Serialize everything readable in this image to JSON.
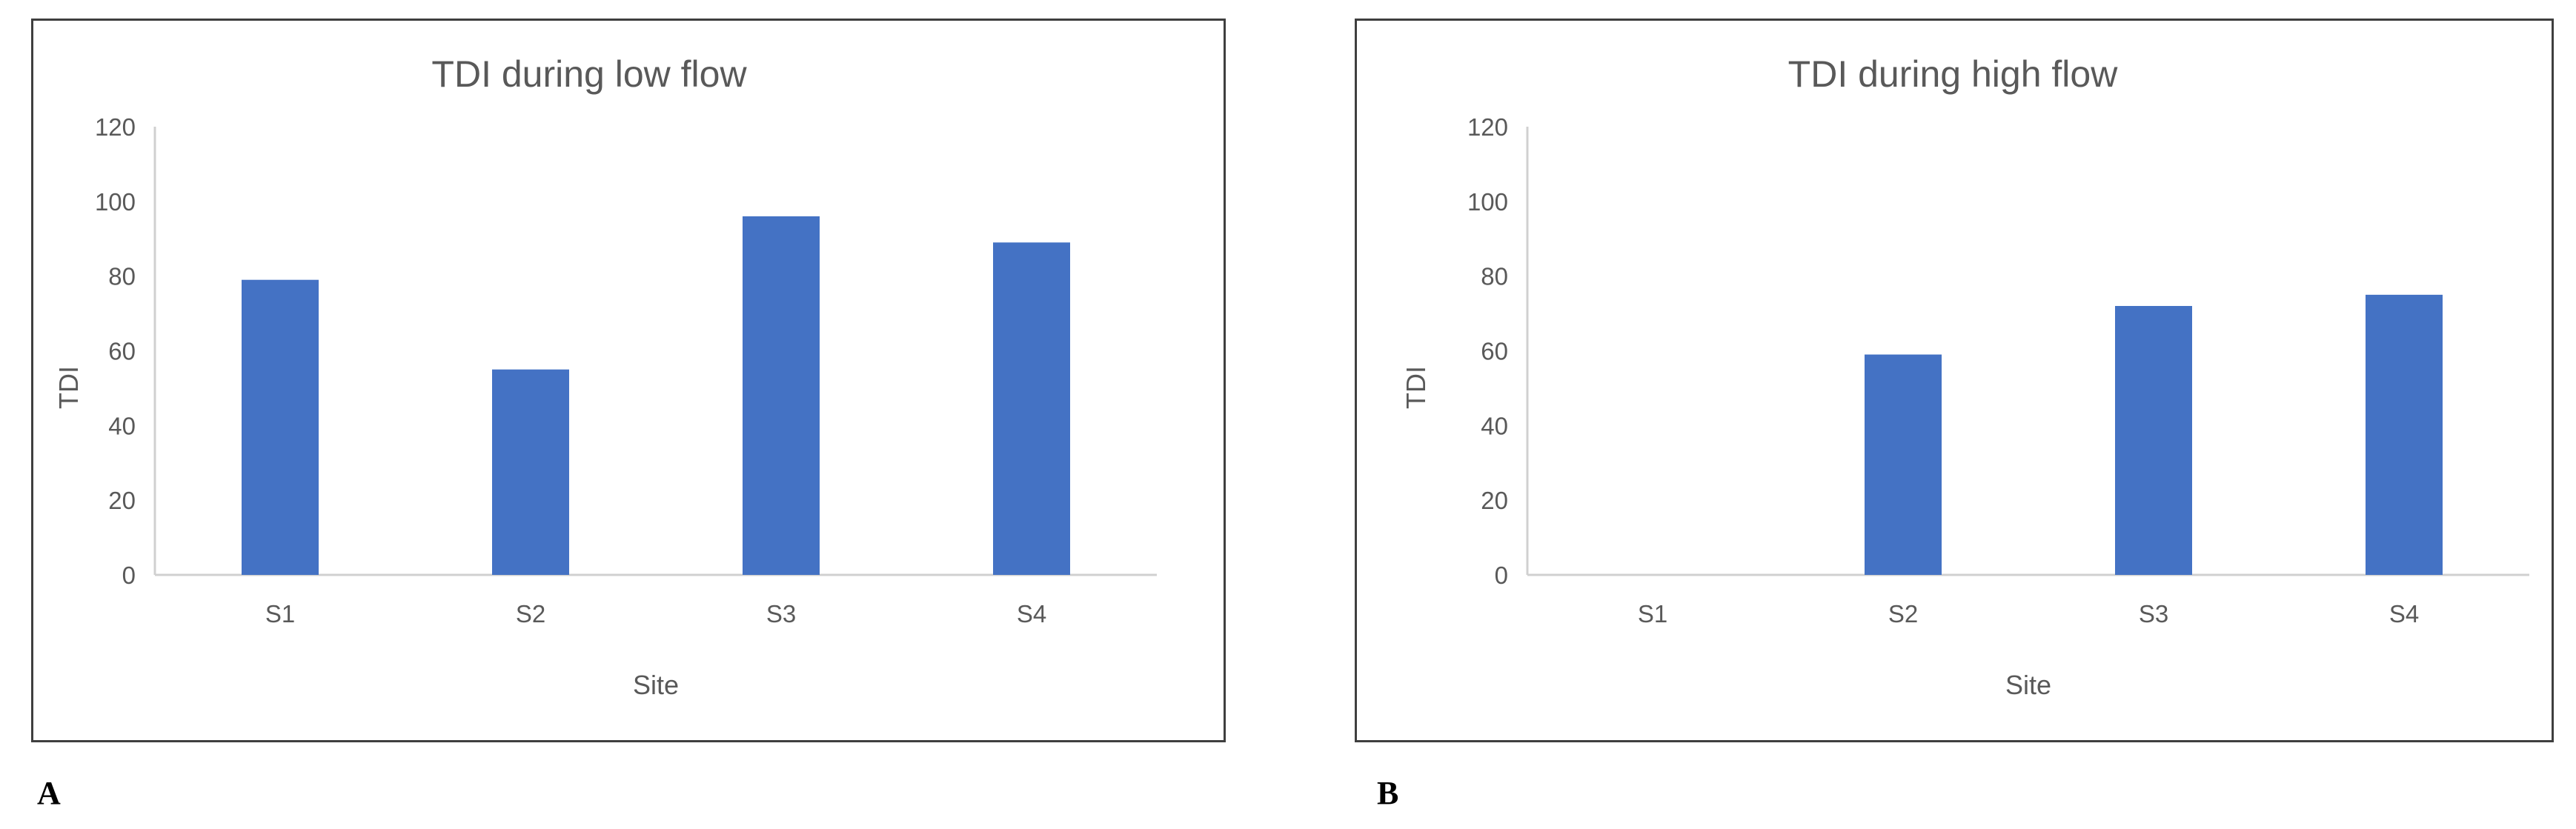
{
  "panels": [
    {
      "letter": "A"
    },
    {
      "letter": "B"
    }
  ],
  "chart_data": [
    {
      "type": "bar",
      "title": "TDI during low flow",
      "xlabel": "Site",
      "ylabel": "TDI",
      "categories": [
        "S1",
        "S2",
        "S3",
        "S4"
      ],
      "values": [
        79,
        55,
        96,
        89
      ],
      "ylim": [
        0,
        120
      ],
      "yticks": [
        0,
        20,
        40,
        60,
        80,
        100,
        120
      ],
      "grid": false,
      "color": "#4472c4"
    },
    {
      "type": "bar",
      "title": "TDI during high flow",
      "xlabel": "Site",
      "ylabel": "TDI",
      "categories": [
        "S1",
        "S2",
        "S3",
        "S4"
      ],
      "values": [
        0,
        59,
        72,
        75
      ],
      "ylim": [
        0,
        120
      ],
      "yticks": [
        0,
        20,
        40,
        60,
        80,
        100,
        120
      ],
      "grid": false,
      "color": "#4472c4"
    }
  ]
}
